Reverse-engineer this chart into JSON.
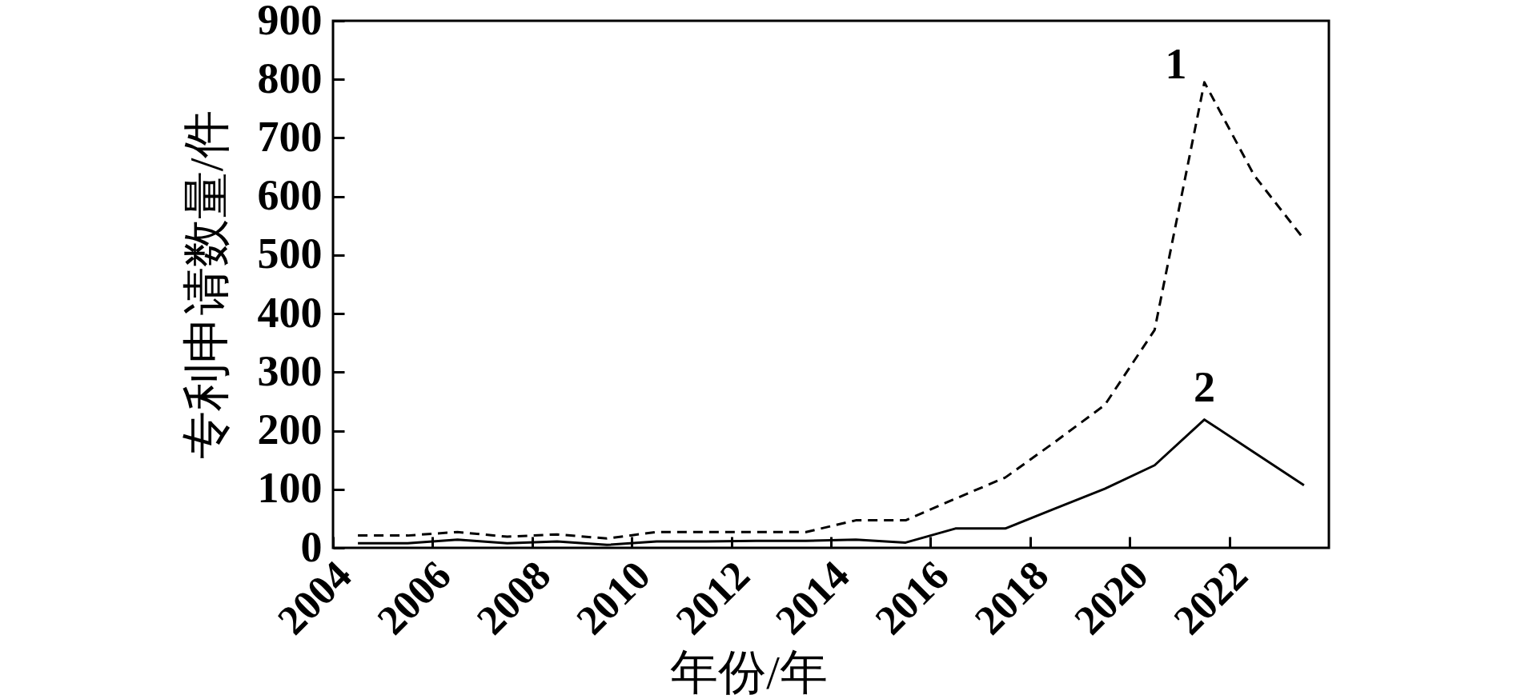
{
  "chart_data": {
    "type": "line",
    "xlabel": "年份/年",
    "ylabel": "专利申请数量/件",
    "x": [
      2004.5,
      2005.5,
      2006.5,
      2007.5,
      2008.5,
      2009.5,
      2010.5,
      2011.5,
      2012.5,
      2013.5,
      2014.5,
      2015.5,
      2016.5,
      2017.5,
      2018.5,
      2019.5,
      2020.5,
      2021.5,
      2022.5,
      2023.5
    ],
    "xlim": [
      2004,
      2024
    ],
    "xticks": [
      2004,
      2006,
      2008,
      2010,
      2012,
      2014,
      2016,
      2018,
      2020,
      2022
    ],
    "ylim": [
      0,
      900
    ],
    "yticks": [
      0,
      100,
      200,
      300,
      400,
      500,
      600,
      700,
      800,
      900
    ],
    "grid": false,
    "legend": false,
    "series": [
      {
        "name": "1",
        "color": "#000000",
        "line_style": "dashed",
        "values": [
          21,
          21,
          27,
          19,
          23,
          16,
          27,
          27,
          27,
          27,
          47,
          47,
          84,
          120,
          181,
          244,
          372,
          795,
          636,
          527
        ]
      },
      {
        "name": "2",
        "color": "#000000",
        "line_style": "solid",
        "values": [
          8,
          8,
          14,
          8,
          11,
          5,
          11,
          11,
          12,
          12,
          14,
          9,
          33,
          33,
          67,
          101,
          141,
          219,
          163,
          107
        ]
      }
    ]
  }
}
